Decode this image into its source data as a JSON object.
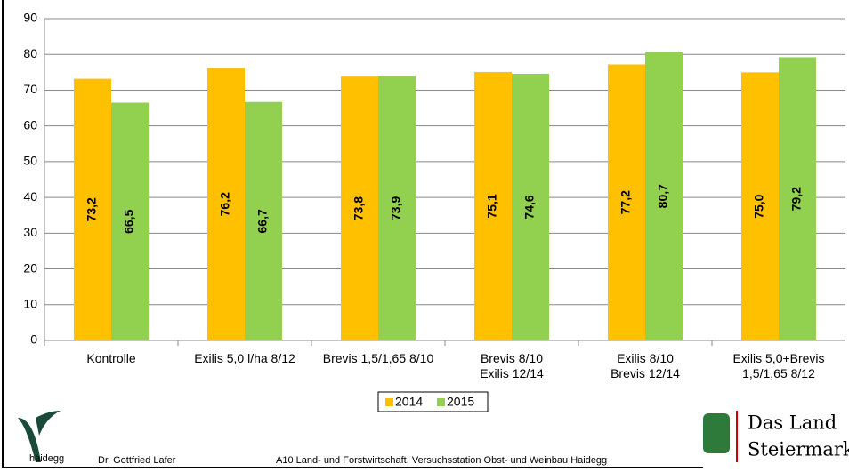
{
  "chart_data": {
    "type": "bar",
    "categories": [
      "Kontrolle",
      "Exilis 5,0 l/ha 8/12",
      "Brevis 1,5/1,65 8/10",
      "Brevis 8/10\nExilis 12/14",
      "Exilis 8/10\nBrevis 12/14",
      "Exilis 5,0+Brevis\n1,5/1,65 8/12"
    ],
    "series": [
      {
        "name": "2014",
        "color": "#FFC000",
        "values": [
          73.2,
          76.2,
          73.8,
          75.1,
          77.2,
          75.0
        ],
        "value_labels": [
          "73,2",
          "76,2",
          "73,8",
          "75,1",
          "77,2",
          "75,0"
        ]
      },
      {
        "name": "2015",
        "color": "#92D050",
        "values": [
          66.5,
          66.7,
          73.9,
          74.6,
          80.7,
          79.2
        ],
        "value_labels": [
          "66,5",
          "66,7",
          "73,9",
          "74,6",
          "80,7",
          "79,2"
        ]
      }
    ],
    "ylim": [
      0,
      90
    ],
    "yticks": [
      0,
      10,
      20,
      30,
      40,
      50,
      60,
      70,
      80,
      90
    ],
    "grid": true,
    "legend": "bottom"
  },
  "footer": {
    "logo_text": "haidegg",
    "author": "Dr. Gottfried Lafer",
    "institution": "A10 Land- und Forstwirtschaft, Versuchsstation Obst- und Weinbau Haidegg",
    "brand_line1": "Das Land",
    "brand_line2": "Steiermark"
  }
}
